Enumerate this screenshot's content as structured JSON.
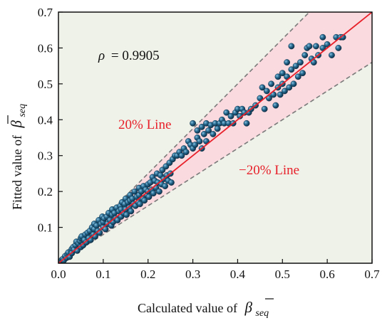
{
  "chart_data": {
    "type": "scatter",
    "xlabel": "Calculated value of",
    "ylabel": "Fitted value of",
    "axis_symbol": "β",
    "axis_symbol_sub": "seq",
    "xlim": [
      0.0,
      0.7
    ],
    "ylim": [
      0.0,
      0.7
    ],
    "xticks": [
      "0.0",
      "0.1",
      "0.2",
      "0.3",
      "0.4",
      "0.5",
      "0.6",
      "0.7"
    ],
    "yticks": [
      "0.1",
      "0.2",
      "0.3",
      "0.4",
      "0.5",
      "0.6",
      "0.7"
    ],
    "annotations": {
      "rho_symbol": "ρ",
      "rho_value": "= 0.9905",
      "upper_line": "20% Line",
      "lower_line": "−20% Line"
    },
    "reference_lines": {
      "equality_slope": 1.0,
      "upper_slope": 1.25,
      "lower_slope": 0.8
    },
    "colors": {
      "background": "#eef2e8",
      "band": "#fadadf",
      "fit_line": "#e8202a",
      "bound_line": "#7a7a7a",
      "marker": "#1f5f86",
      "annotation_red": "#e8202a",
      "annotation_black": "#111111"
    },
    "grid": false,
    "points": [
      [
        0.005,
        0.006
      ],
      [
        0.008,
        0.01
      ],
      [
        0.01,
        0.012
      ],
      [
        0.012,
        0.008
      ],
      [
        0.015,
        0.02
      ],
      [
        0.018,
        0.015
      ],
      [
        0.02,
        0.025
      ],
      [
        0.022,
        0.03
      ],
      [
        0.025,
        0.018
      ],
      [
        0.028,
        0.035
      ],
      [
        0.03,
        0.04
      ],
      [
        0.03,
        0.028
      ],
      [
        0.033,
        0.045
      ],
      [
        0.035,
        0.038
      ],
      [
        0.038,
        0.05
      ],
      [
        0.04,
        0.06
      ],
      [
        0.042,
        0.035
      ],
      [
        0.045,
        0.055
      ],
      [
        0.048,
        0.062
      ],
      [
        0.05,
        0.045
      ],
      [
        0.05,
        0.07
      ],
      [
        0.052,
        0.075
      ],
      [
        0.055,
        0.05
      ],
      [
        0.058,
        0.065
      ],
      [
        0.06,
        0.08
      ],
      [
        0.062,
        0.058
      ],
      [
        0.065,
        0.085
      ],
      [
        0.068,
        0.07
      ],
      [
        0.07,
        0.09
      ],
      [
        0.072,
        0.065
      ],
      [
        0.075,
        0.1
      ],
      [
        0.078,
        0.08
      ],
      [
        0.08,
        0.095
      ],
      [
        0.08,
        0.11
      ],
      [
        0.082,
        0.075
      ],
      [
        0.085,
        0.105
      ],
      [
        0.088,
        0.09
      ],
      [
        0.09,
        0.12
      ],
      [
        0.092,
        0.085
      ],
      [
        0.095,
        0.11
      ],
      [
        0.098,
        0.13
      ],
      [
        0.1,
        0.1
      ],
      [
        0.1,
        0.115
      ],
      [
        0.102,
        0.125
      ],
      [
        0.105,
        0.095
      ],
      [
        0.108,
        0.13
      ],
      [
        0.11,
        0.11
      ],
      [
        0.112,
        0.14
      ],
      [
        0.115,
        0.12
      ],
      [
        0.118,
        0.105
      ],
      [
        0.12,
        0.135
      ],
      [
        0.12,
        0.15
      ],
      [
        0.122,
        0.115
      ],
      [
        0.125,
        0.14
      ],
      [
        0.128,
        0.125
      ],
      [
        0.13,
        0.155
      ],
      [
        0.132,
        0.12
      ],
      [
        0.135,
        0.145
      ],
      [
        0.138,
        0.16
      ],
      [
        0.14,
        0.13
      ],
      [
        0.14,
        0.15
      ],
      [
        0.142,
        0.17
      ],
      [
        0.145,
        0.14
      ],
      [
        0.148,
        0.165
      ],
      [
        0.15,
        0.15
      ],
      [
        0.15,
        0.18
      ],
      [
        0.152,
        0.135
      ],
      [
        0.155,
        0.17
      ],
      [
        0.158,
        0.155
      ],
      [
        0.16,
        0.175
      ],
      [
        0.16,
        0.19
      ],
      [
        0.162,
        0.145
      ],
      [
        0.165,
        0.18
      ],
      [
        0.168,
        0.165
      ],
      [
        0.17,
        0.2
      ],
      [
        0.172,
        0.16
      ],
      [
        0.175,
        0.185
      ],
      [
        0.178,
        0.17
      ],
      [
        0.18,
        0.21
      ],
      [
        0.18,
        0.19
      ],
      [
        0.182,
        0.165
      ],
      [
        0.185,
        0.2
      ],
      [
        0.188,
        0.18
      ],
      [
        0.19,
        0.215
      ],
      [
        0.192,
        0.175
      ],
      [
        0.195,
        0.205
      ],
      [
        0.198,
        0.19
      ],
      [
        0.2,
        0.22
      ],
      [
        0.2,
        0.2
      ],
      [
        0.202,
        0.185
      ],
      [
        0.205,
        0.225
      ],
      [
        0.208,
        0.205
      ],
      [
        0.21,
        0.24
      ],
      [
        0.212,
        0.195
      ],
      [
        0.215,
        0.23
      ],
      [
        0.218,
        0.21
      ],
      [
        0.22,
        0.25
      ],
      [
        0.222,
        0.225
      ],
      [
        0.225,
        0.2
      ],
      [
        0.228,
        0.245
      ],
      [
        0.23,
        0.22
      ],
      [
        0.232,
        0.26
      ],
      [
        0.235,
        0.235
      ],
      [
        0.238,
        0.215
      ],
      [
        0.24,
        0.27
      ],
      [
        0.242,
        0.245
      ],
      [
        0.245,
        0.23
      ],
      [
        0.248,
        0.28
      ],
      [
        0.25,
        0.25
      ],
      [
        0.252,
        0.225
      ],
      [
        0.255,
        0.29
      ],
      [
        0.26,
        0.3
      ],
      [
        0.265,
        0.3
      ],
      [
        0.27,
        0.31
      ],
      [
        0.275,
        0.3
      ],
      [
        0.28,
        0.32
      ],
      [
        0.285,
        0.31
      ],
      [
        0.29,
        0.34
      ],
      [
        0.295,
        0.33
      ],
      [
        0.3,
        0.32
      ],
      [
        0.3,
        0.39
      ],
      [
        0.305,
        0.33
      ],
      [
        0.31,
        0.35
      ],
      [
        0.31,
        0.37
      ],
      [
        0.315,
        0.34
      ],
      [
        0.32,
        0.32
      ],
      [
        0.32,
        0.38
      ],
      [
        0.325,
        0.36
      ],
      [
        0.33,
        0.34
      ],
      [
        0.33,
        0.39
      ],
      [
        0.335,
        0.37
      ],
      [
        0.34,
        0.385
      ],
      [
        0.345,
        0.36
      ],
      [
        0.35,
        0.39
      ],
      [
        0.355,
        0.375
      ],
      [
        0.36,
        0.39
      ],
      [
        0.365,
        0.4
      ],
      [
        0.37,
        0.39
      ],
      [
        0.375,
        0.42
      ],
      [
        0.38,
        0.39
      ],
      [
        0.385,
        0.41
      ],
      [
        0.39,
        0.39
      ],
      [
        0.395,
        0.42
      ],
      [
        0.4,
        0.43
      ],
      [
        0.405,
        0.41
      ],
      [
        0.41,
        0.43
      ],
      [
        0.415,
        0.42
      ],
      [
        0.42,
        0.39
      ],
      [
        0.425,
        0.42
      ],
      [
        0.43,
        0.43
      ],
      [
        0.44,
        0.44
      ],
      [
        0.45,
        0.46
      ],
      [
        0.455,
        0.49
      ],
      [
        0.46,
        0.43
      ],
      [
        0.465,
        0.48
      ],
      [
        0.47,
        0.46
      ],
      [
        0.475,
        0.5
      ],
      [
        0.48,
        0.47
      ],
      [
        0.485,
        0.44
      ],
      [
        0.49,
        0.49
      ],
      [
        0.49,
        0.52
      ],
      [
        0.495,
        0.47
      ],
      [
        0.5,
        0.5
      ],
      [
        0.5,
        0.53
      ],
      [
        0.505,
        0.48
      ],
      [
        0.51,
        0.52
      ],
      [
        0.51,
        0.56
      ],
      [
        0.515,
        0.49
      ],
      [
        0.52,
        0.54
      ],
      [
        0.52,
        0.605
      ],
      [
        0.525,
        0.5
      ],
      [
        0.53,
        0.55
      ],
      [
        0.535,
        0.52
      ],
      [
        0.54,
        0.56
      ],
      [
        0.545,
        0.53
      ],
      [
        0.55,
        0.58
      ],
      [
        0.555,
        0.6
      ],
      [
        0.56,
        0.605
      ],
      [
        0.565,
        0.57
      ],
      [
        0.57,
        0.56
      ],
      [
        0.575,
        0.605
      ],
      [
        0.58,
        0.58
      ],
      [
        0.59,
        0.6
      ],
      [
        0.6,
        0.61
      ],
      [
        0.61,
        0.58
      ],
      [
        0.62,
        0.63
      ],
      [
        0.625,
        0.6
      ],
      [
        0.63,
        0.63
      ],
      [
        0.635,
        0.63
      ],
      [
        0.59,
        0.63
      ]
    ]
  }
}
